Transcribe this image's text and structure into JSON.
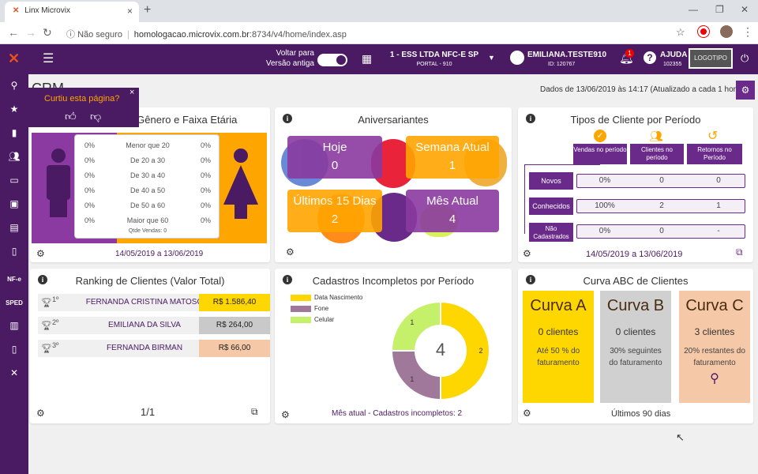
{
  "browser": {
    "tab_title": "Linx Microvix",
    "security_label": "Não seguro",
    "url_host": "homologacao.microvix.com.br",
    "url_path": ":8734/v4/home/index.asp"
  },
  "header": {
    "toggle_label_1": "Voltar para",
    "toggle_label_2": "Versão antiga",
    "company": "1 - ESS LTDA NFC-E SP",
    "portal": "PORTAL - 910",
    "user": "EMILIANA.TESTE910",
    "user_id": "ID: 120767",
    "notif_count": "1",
    "help": "AJUDA",
    "help_code": "102355",
    "logo": "LOGOTIPO"
  },
  "sidebar": {
    "items": [
      "search-icon",
      "star-icon",
      "building-icon",
      "users-icon",
      "computer-icon",
      "money-icon",
      "box-icon",
      "document-icon",
      "NF-e",
      "SPED",
      "clipboard-icon",
      "file-icon",
      "tools-icon"
    ]
  },
  "page": {
    "title_partial": "CRM",
    "data_status": "Dados de 13/06/2019 às 14:17 (Atualizado a cada 1 hora)"
  },
  "feedback": {
    "question": "Curtiu esta página?"
  },
  "cards": {
    "gender": {
      "title": "or Gênero e Faixa Etária",
      "rows": [
        {
          "left": "0%",
          "label": "Menor que 20",
          "right": "0%"
        },
        {
          "left": "0%",
          "label": "De 20 a 30",
          "right": "0%"
        },
        {
          "left": "0%",
          "label": "De 30 a 40",
          "right": "0%"
        },
        {
          "left": "0%",
          "label": "De 40 a 50",
          "right": "0%"
        },
        {
          "left": "0%",
          "label": "De 50 a 60",
          "right": "0%"
        },
        {
          "left": "0%",
          "label": "Maior que 60",
          "right": "0%"
        }
      ],
      "qtde": "Qtde Vendas: 0",
      "period": "14/05/2019 a 13/06/2019"
    },
    "birthdays": {
      "title": "Aniversariantes",
      "hoje": {
        "label": "Hoje",
        "value": "0"
      },
      "semana": {
        "label": "Semana Atual",
        "value": "1"
      },
      "quinze": {
        "label": "Últimos 15 Dias",
        "value": "2"
      },
      "mes": {
        "label": "Mês Atual",
        "value": "4"
      }
    },
    "types": {
      "title": "Tipos de Cliente por Período",
      "cols": [
        "Vendas no período",
        "Clientes no período",
        "Retornos no Período"
      ],
      "rows": [
        {
          "label": "Novos",
          "vals": [
            "0%",
            "0",
            "0"
          ]
        },
        {
          "label": "Conhecidos",
          "vals": [
            "100%",
            "2",
            "1"
          ]
        },
        {
          "label": "Não Cadastrados",
          "vals": [
            "0%",
            "0",
            "-"
          ]
        }
      ],
      "period": "14/05/2019 a 13/06/2019"
    },
    "ranking": {
      "title": "Ranking de Clientes (Valor Total)",
      "rows": [
        {
          "pos": "1º",
          "name": "FERNANDA CRISTINA MATOSO",
          "value": "R$ 1.586,40",
          "color": "#ffd700"
        },
        {
          "pos": "2º",
          "name": "EMILIANA DA SILVA",
          "value": "R$ 264,00",
          "color": "#c9c9c9"
        },
        {
          "pos": "3º",
          "name": "FERNANDA BIRMAN",
          "value": "R$ 66,00",
          "color": "#f5c9a8"
        }
      ],
      "pager": "1/1"
    },
    "incomplete": {
      "title": "Cadastros Incompletos por Período",
      "legend": [
        {
          "label": "Data Nascimento",
          "color": "#ffd700"
        },
        {
          "label": "Fone",
          "color": "#a0789a"
        },
        {
          "label": "Celular",
          "color": "#c4f06a"
        }
      ],
      "total": "4",
      "slice_labels": [
        "2",
        "1",
        "1"
      ],
      "footer": "Mês atual - Cadastros incompletos: 2"
    },
    "abc": {
      "title": "Curva ABC de Clientes",
      "a": {
        "title": "Curva A",
        "count": "0 clientes",
        "desc": "Até 50 % do faturamento",
        "color": "#ffd700"
      },
      "b": {
        "title": "Curva B",
        "count": "0 clientes",
        "desc": "30% seguintes do faturamento",
        "color": "#d0d0d0"
      },
      "c": {
        "title": "Curva C",
        "count": "3 clientes",
        "desc": "20% restantes do faturamento",
        "color": "#f5c9a8"
      },
      "footer": "Últimos 90 dias"
    }
  }
}
